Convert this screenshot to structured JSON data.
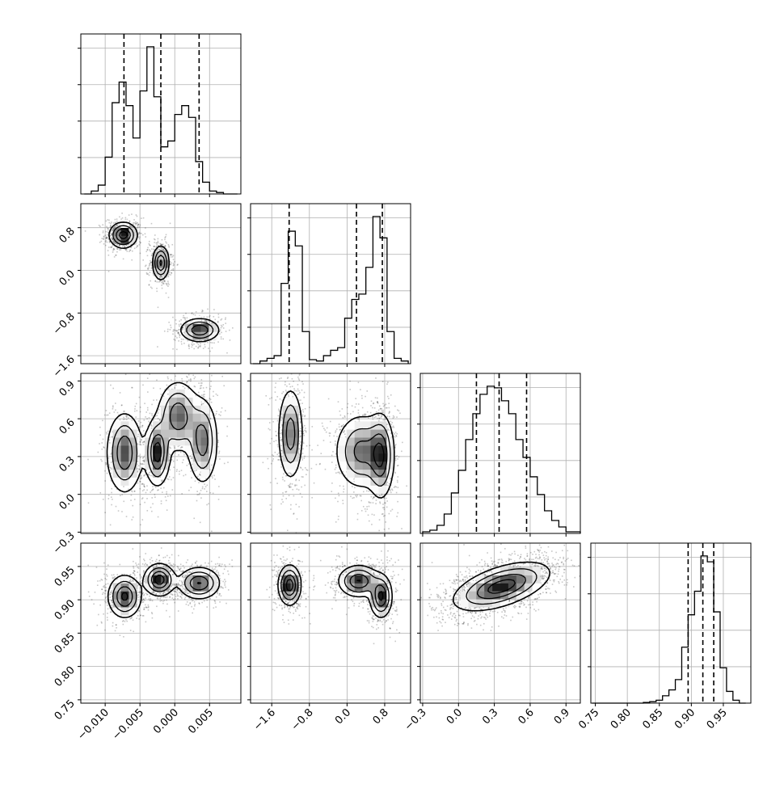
{
  "chart_data": {
    "type": "corner",
    "title": "",
    "grid": true,
    "parameters": [
      {
        "xlim": [
          -0.0135,
          0.0095
        ],
        "ticks": [
          -0.01,
          -0.005,
          0.0,
          0.005
        ],
        "tick_labels": [
          "−0.010",
          "−0.005",
          "0.000",
          "0.005"
        ]
      },
      {
        "xlim": [
          -2.05,
          1.35
        ],
        "ticks": [
          -1.6,
          -0.8,
          0.0,
          0.8
        ],
        "tick_labels": [
          "−1.6",
          "−0.8",
          "0.0",
          "0.8"
        ]
      },
      {
        "xlim": [
          -0.32,
          1.02
        ],
        "ticks": [
          -0.3,
          0.0,
          0.3,
          0.6,
          0.9
        ],
        "tick_labels": [
          "−0.3",
          "0.0",
          "0.3",
          "0.6",
          "0.9"
        ]
      },
      {
        "xlim": [
          0.743,
          0.993
        ],
        "ticks": [
          0.75,
          0.8,
          0.85,
          0.9,
          0.95
        ],
        "tick_labels": [
          "0.75",
          "0.80",
          "0.85",
          "0.90",
          "0.95"
        ]
      }
    ],
    "histograms": [
      {
        "param": 0,
        "bins": [
          -0.013,
          -0.012,
          -0.011,
          -0.01,
          -0.009,
          -0.008,
          -0.007,
          -0.006,
          -0.005,
          -0.004,
          -0.003,
          -0.002,
          -0.001,
          0.0,
          0.001,
          0.002,
          0.003,
          0.004,
          0.005,
          0.006,
          0.007,
          0.008,
          0.009
        ],
        "counts": [
          0,
          0.02,
          0.06,
          0.25,
          0.62,
          0.76,
          0.6,
          0.38,
          0.7,
          1.0,
          0.66,
          0.32,
          0.36,
          0.54,
          0.6,
          0.52,
          0.22,
          0.08,
          0.02,
          0.01,
          0,
          0
        ],
        "quantile_lines": [
          -0.0073,
          -0.002,
          0.0035
        ]
      },
      {
        "param": 1,
        "bins": [
          -2.0,
          -1.85,
          -1.7,
          -1.55,
          -1.4,
          -1.25,
          -1.1,
          -0.95,
          -0.8,
          -0.65,
          -0.5,
          -0.35,
          -0.2,
          -0.05,
          0.1,
          0.25,
          0.4,
          0.55,
          0.7,
          0.85,
          1.0,
          1.15,
          1.3
        ],
        "counts": [
          0,
          0.02,
          0.04,
          0.06,
          0.6,
          0.99,
          0.88,
          0.24,
          0.03,
          0.02,
          0.06,
          0.1,
          0.12,
          0.34,
          0.48,
          0.52,
          0.72,
          1.1,
          0.94,
          0.24,
          0.04,
          0.02
        ],
        "quantile_lines": [
          -1.23,
          0.2,
          0.75
        ]
      },
      {
        "param": 2,
        "bins": [
          -0.3,
          -0.24,
          -0.18,
          -0.12,
          -0.06,
          0.0,
          0.06,
          0.12,
          0.18,
          0.24,
          0.3,
          0.36,
          0.42,
          0.48,
          0.54,
          0.6,
          0.66,
          0.72,
          0.78,
          0.84,
          0.9,
          0.96,
          1.02
        ],
        "counts": [
          0.01,
          0.02,
          0.05,
          0.12,
          0.25,
          0.39,
          0.58,
          0.74,
          0.86,
          0.91,
          0.9,
          0.82,
          0.74,
          0.58,
          0.47,
          0.35,
          0.24,
          0.14,
          0.08,
          0.04,
          0.01,
          0.01
        ],
        "quantile_lines": [
          0.15,
          0.34,
          0.57
        ]
      },
      {
        "param": 3,
        "bins": [
          0.745,
          0.755,
          0.765,
          0.775,
          0.785,
          0.795,
          0.805,
          0.815,
          0.825,
          0.835,
          0.845,
          0.855,
          0.865,
          0.875,
          0.885,
          0.895,
          0.905,
          0.915,
          0.925,
          0.935,
          0.945,
          0.955,
          0.965,
          0.975,
          0.985
        ],
        "counts": [
          0,
          0,
          0,
          0,
          0,
          0,
          0,
          0,
          0.005,
          0.01,
          0.02,
          0.05,
          0.09,
          0.16,
          0.38,
          0.6,
          0.76,
          1.0,
          0.96,
          0.62,
          0.24,
          0.08,
          0.02,
          0
        ],
        "quantile_lines": [
          0.895,
          0.918,
          0.935
        ]
      }
    ],
    "pairs": [
      {
        "x": 0,
        "y": 1,
        "ylim": [
          -1.75,
          1.25
        ],
        "yticks": [
          -1.6,
          -0.8,
          0.0,
          0.8
        ],
        "ytick_labels": [
          "−1.6",
          "−0.8",
          "0.0",
          "0.8"
        ],
        "components": [
          {
            "cx": -0.0074,
            "cy": 0.66,
            "sx": 0.001,
            "sy": 0.12,
            "w": 1.0
          },
          {
            "cx": -0.002,
            "cy": 0.14,
            "sx": 0.0006,
            "sy": 0.16,
            "w": 0.9
          },
          {
            "cx": 0.0036,
            "cy": -1.12,
            "sx": 0.0014,
            "sy": 0.11,
            "w": 0.85
          }
        ]
      },
      {
        "x": 0,
        "y": 2,
        "ylim": [
          -0.31,
          0.96
        ],
        "yticks": [
          -0.3,
          0.0,
          0.3,
          0.6,
          0.9
        ],
        "ytick_labels": [
          "−0.3",
          "0.0",
          "0.3",
          "0.6",
          "0.9"
        ],
        "components": [
          {
            "cx": -0.0072,
            "cy": 0.33,
            "sx": 0.0013,
            "sy": 0.16,
            "w": 0.85
          },
          {
            "cx": -0.0025,
            "cy": 0.33,
            "sx": 0.0009,
            "sy": 0.13,
            "w": 1.0
          },
          {
            "cx": 0.0005,
            "cy": 0.62,
            "sx": 0.0015,
            "sy": 0.14,
            "w": 0.8
          },
          {
            "cx": 0.004,
            "cy": 0.42,
            "sx": 0.0011,
            "sy": 0.17,
            "w": 0.75
          }
        ]
      },
      {
        "x": 1,
        "y": 2,
        "ylim": [
          -0.31,
          0.96
        ],
        "yticks": [
          -0.3,
          0.0,
          0.3,
          0.6,
          0.9
        ],
        "ytick_labels": [
          "−0.3",
          "0.0",
          "0.3",
          "0.6",
          "0.9"
        ],
        "components": [
          {
            "cx": -1.2,
            "cy": 0.48,
            "sx": 0.13,
            "sy": 0.18,
            "w": 1.0
          },
          {
            "cx": 0.3,
            "cy": 0.34,
            "sx": 0.28,
            "sy": 0.15,
            "w": 0.9
          },
          {
            "cx": 0.72,
            "cy": 0.3,
            "sx": 0.14,
            "sy": 0.17,
            "w": 1.0
          }
        ]
      },
      {
        "x": 0,
        "y": 3,
        "ylim": [
          0.745,
          0.985
        ],
        "yticks": [
          0.75,
          0.8,
          0.85,
          0.9,
          0.95
        ],
        "ytick_labels": [
          "0.75",
          "0.80",
          "0.85",
          "0.90",
          "0.95"
        ],
        "components": [
          {
            "cx": -0.0072,
            "cy": 0.905,
            "sx": 0.0012,
            "sy": 0.016,
            "w": 0.9
          },
          {
            "cx": -0.0022,
            "cy": 0.93,
            "sx": 0.0011,
            "sy": 0.012,
            "w": 1.0
          },
          {
            "cx": 0.0035,
            "cy": 0.925,
            "sx": 0.0015,
            "sy": 0.012,
            "w": 0.85
          }
        ]
      },
      {
        "x": 1,
        "y": 3,
        "ylim": [
          0.745,
          0.985
        ],
        "yticks": [
          0.75,
          0.8,
          0.85,
          0.9,
          0.95
        ],
        "ytick_labels": [
          "0.75",
          "0.80",
          "0.85",
          "0.90",
          "0.95"
        ],
        "components": [
          {
            "cx": -1.22,
            "cy": 0.922,
            "sx": 0.12,
            "sy": 0.015,
            "w": 1.0
          },
          {
            "cx": 0.25,
            "cy": 0.928,
            "sx": 0.22,
            "sy": 0.012,
            "w": 0.85
          },
          {
            "cx": 0.72,
            "cy": 0.905,
            "sx": 0.12,
            "sy": 0.016,
            "w": 0.9
          }
        ]
      },
      {
        "x": 2,
        "y": 3,
        "ylim": [
          0.745,
          0.985
        ],
        "yticks": [
          0.75,
          0.8,
          0.85,
          0.9,
          0.95
        ],
        "ytick_labels": [
          "0.75",
          "0.80",
          "0.85",
          "0.90",
          "0.95"
        ],
        "components": [
          {
            "cx": 0.36,
            "cy": 0.92,
            "sx": 0.2,
            "sy": 0.018,
            "w": 1.0,
            "rho": 0.55
          }
        ]
      }
    ]
  }
}
